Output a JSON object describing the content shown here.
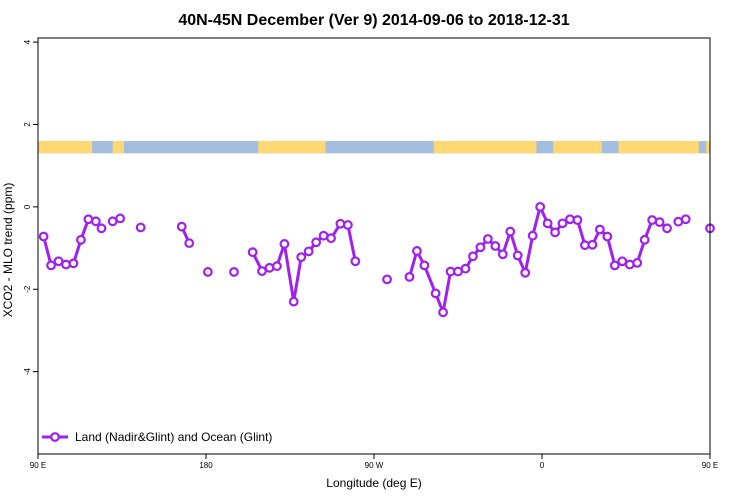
{
  "chart_data": {
    "type": "line",
    "title": "40N-45N December (Ver 9)   2014-09-06 to 2018-12-31",
    "xlabel": "Longitude (deg E)",
    "ylabel": "XCO2 - MLO trend (ppm)",
    "xlim": [
      90,
      450
    ],
    "ylim": [
      -6,
      4.1
    ],
    "x_ticks": [
      {
        "value": 90,
        "label": "90 E"
      },
      {
        "value": 180,
        "label": "180"
      },
      {
        "value": 270,
        "label": "90 W"
      },
      {
        "value": 360,
        "label": "0"
      },
      {
        "value": 450,
        "label": "90 E"
      },
      {
        "value": 540,
        "label": "180"
      }
    ],
    "y_ticks": [
      {
        "value": 4,
        "label": "4"
      },
      {
        "value": 2,
        "label": "2"
      },
      {
        "value": 0,
        "label": "0"
      },
      {
        "value": -2,
        "label": "-2"
      },
      {
        "value": -4,
        "label": "-4"
      }
    ],
    "grid": false,
    "legend_position": "bottom-left",
    "colors": {
      "series": "#A020F0",
      "land": "#FFD873",
      "ocean": "#A3BEDF",
      "frame": "#000000"
    },
    "surface_band": {
      "y_range": [
        1.3,
        1.6
      ],
      "land_segments": [
        [
          90,
          119
        ],
        [
          130,
          136
        ],
        [
          208,
          244
        ],
        [
          302,
          357
        ],
        [
          366,
          392
        ],
        [
          401,
          444
        ],
        [
          448,
          454
        ],
        [
          455,
          459
        ]
      ]
    },
    "series": [
      {
        "name": "Land (Nadir&Glint) and Ocean (Glint)",
        "segments": [
          [
            [
              93,
              -0.72
            ],
            [
              97,
              -1.42
            ],
            [
              101,
              -1.32
            ],
            [
              105,
              -1.4
            ],
            [
              109,
              -1.37
            ],
            [
              113,
              -0.8
            ],
            [
              117,
              -0.3
            ],
            [
              121,
              -0.35
            ],
            [
              124,
              -0.52
            ]
          ],
          [
            [
              130,
              -0.35
            ],
            [
              134,
              -0.28
            ]
          ],
          [
            [
              145,
              -0.5
            ]
          ],
          [
            [
              167,
              -0.48
            ],
            [
              171,
              -0.88
            ]
          ],
          [
            [
              181,
              -1.58
            ]
          ],
          [
            [
              195,
              -1.58
            ]
          ],
          [
            [
              205,
              -1.1
            ],
            [
              210,
              -1.56
            ],
            [
              214,
              -1.48
            ],
            [
              218,
              -1.44
            ],
            [
              222,
              -0.9
            ],
            [
              227,
              -2.3
            ],
            [
              231,
              -1.22
            ],
            [
              235,
              -1.08
            ],
            [
              239,
              -0.86
            ],
            [
              243,
              -0.7
            ],
            [
              247,
              -0.76
            ],
            [
              252,
              -0.41
            ],
            [
              256,
              -0.44
            ],
            [
              260,
              -1.32
            ]
          ],
          [
            [
              277,
              -1.76
            ]
          ],
          [
            [
              289,
              -1.7
            ],
            [
              293,
              -1.07
            ],
            [
              297,
              -1.42
            ],
            [
              303,
              -2.1
            ],
            [
              307,
              -2.56
            ],
            [
              311,
              -1.57
            ],
            [
              315,
              -1.57
            ],
            [
              319,
              -1.5
            ],
            [
              323,
              -1.2
            ],
            [
              327,
              -0.98
            ],
            [
              331,
              -0.78
            ],
            [
              335,
              -0.95
            ],
            [
              339,
              -1.15
            ],
            [
              343,
              -0.6
            ],
            [
              347,
              -1.18
            ],
            [
              351,
              -1.6
            ],
            [
              355,
              -0.7
            ],
            [
              359,
              0.0
            ],
            [
              363,
              -0.4
            ],
            [
              367,
              -0.62
            ],
            [
              371,
              -0.4
            ],
            [
              375,
              -0.3
            ],
            [
              379,
              -0.32
            ],
            [
              383,
              -0.93
            ],
            [
              387,
              -0.92
            ],
            [
              391,
              -0.55
            ],
            [
              395,
              -0.72
            ],
            [
              399,
              -1.42
            ],
            [
              403,
              -1.32
            ],
            [
              407,
              -1.4
            ],
            [
              411,
              -1.36
            ],
            [
              415,
              -0.8
            ],
            [
              419,
              -0.32
            ],
            [
              423,
              -0.37
            ],
            [
              427,
              -0.52
            ]
          ],
          [
            [
              433,
              -0.36
            ],
            [
              437,
              -0.3
            ]
          ],
          [
            [
              450,
              -0.52
            ]
          ]
        ]
      }
    ]
  }
}
